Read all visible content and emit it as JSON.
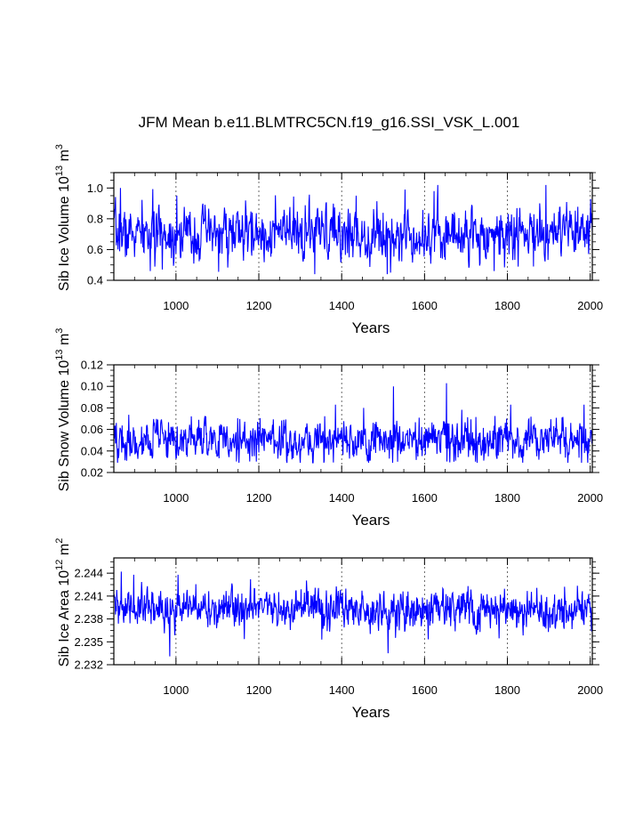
{
  "figure_title": "JFM Mean b.e11.BLMTRC5CN.f19_g16.SSI_VSK_L.001",
  "chart_data": [
    {
      "type": "line",
      "ylabel": {
        "prefix": "Sib Ice Volume 10",
        "exp": "13",
        "unit": " m",
        "unit_exp": "3"
      },
      "xlabel": "Years",
      "xlim": [
        850,
        2005
      ],
      "ylim": [
        0.4,
        1.1
      ],
      "xticks": [
        1000,
        1200,
        1400,
        1600,
        1800,
        2000
      ],
      "xtick_labels": [
        "1000",
        "1200",
        "1400",
        "1600",
        "1800",
        "2000"
      ],
      "yticks": [
        0.4,
        0.6,
        0.8,
        1.0
      ],
      "ytick_labels": [
        "0.4",
        "0.6",
        "0.8",
        "1.0"
      ],
      "grid": "vertical-dashed",
      "series": [
        {
          "color": "#0000ff",
          "x_start": 850,
          "x_end": 2005,
          "mean": 0.7,
          "sd": 0.08,
          "min": 0.44,
          "max": 1.02,
          "seed": 7,
          "features": [
            {
              "x": 866,
              "y": 1.0
            },
            {
              "x": 938,
              "y": 0.46
            },
            {
              "x": 1002,
              "y": 0.95
            },
            {
              "x": 1335,
              "y": 0.44
            },
            {
              "x": 1435,
              "y": 0.95
            },
            {
              "x": 1510,
              "y": 0.44
            },
            {
              "x": 1553,
              "y": 0.99
            },
            {
              "x": 1623,
              "y": 0.98
            },
            {
              "x": 1893,
              "y": 1.02
            },
            {
              "x": 1768,
              "y": 0.46
            },
            {
              "x": 1863,
              "y": 0.49
            }
          ]
        }
      ]
    },
    {
      "type": "line",
      "ylabel": {
        "prefix": "Sib Snow Volume 10",
        "exp": "13",
        "unit": " m",
        "unit_exp": "3"
      },
      "xlabel": "Years",
      "xlim": [
        850,
        2005
      ],
      "ylim": [
        0.02,
        0.12
      ],
      "xticks": [
        1000,
        1200,
        1400,
        1600,
        1800,
        2000
      ],
      "xtick_labels": [
        "1000",
        "1200",
        "1400",
        "1600",
        "1800",
        "2000"
      ],
      "yticks": [
        0.02,
        0.04,
        0.06,
        0.08,
        0.1,
        0.12
      ],
      "ytick_labels": [
        "0.02",
        "0.04",
        "0.06",
        "0.08",
        "0.10",
        "0.12"
      ],
      "grid": "vertical-dashed",
      "series": [
        {
          "color": "#0000ff",
          "x_start": 850,
          "x_end": 2005,
          "mean": 0.05,
          "sd": 0.009,
          "min": 0.029,
          "max": 0.103,
          "seed": 19,
          "features": [
            {
              "x": 1525,
              "y": 0.1
            },
            {
              "x": 1653,
              "y": 0.103
            },
            {
              "x": 1385,
              "y": 0.083
            },
            {
              "x": 1453,
              "y": 0.08
            },
            {
              "x": 1808,
              "y": 0.083
            },
            {
              "x": 1985,
              "y": 0.083
            },
            {
              "x": 1723,
              "y": 0.03
            },
            {
              "x": 1535,
              "y": 0.03
            }
          ]
        }
      ]
    },
    {
      "type": "line",
      "ylabel": {
        "prefix": "Sib Ice Area 10",
        "exp": "12",
        "unit": " m",
        "unit_exp": "2"
      },
      "xlabel": "Years",
      "xlim": [
        850,
        2005
      ],
      "ylim": [
        2.232,
        2.246
      ],
      "xticks": [
        1000,
        1200,
        1400,
        1600,
        1800,
        2000
      ],
      "xtick_labels": [
        "1000",
        "1200",
        "1400",
        "1600",
        "1800",
        "2000"
      ],
      "yticks": [
        2.232,
        2.235,
        2.238,
        2.241,
        2.244
      ],
      "ytick_labels": [
        "2.232",
        "2.235",
        "2.238",
        "2.241",
        "2.244"
      ],
      "grid": "vertical-dashed",
      "series": [
        {
          "color": "#0000ff",
          "x_start": 850,
          "x_end": 2005,
          "mean": 2.2393,
          "sd": 0.0012,
          "min": 2.2331,
          "max": 2.2442,
          "seed": 31,
          "features": [
            {
              "x": 985,
              "y": 2.2331
            },
            {
              "x": 1512,
              "y": 2.2335
            },
            {
              "x": 1352,
              "y": 2.2353
            },
            {
              "x": 868,
              "y": 2.2442
            },
            {
              "x": 898,
              "y": 2.2438
            },
            {
              "x": 1005,
              "y": 2.2438
            },
            {
              "x": 1180,
              "y": 2.2432
            }
          ]
        }
      ]
    }
  ]
}
